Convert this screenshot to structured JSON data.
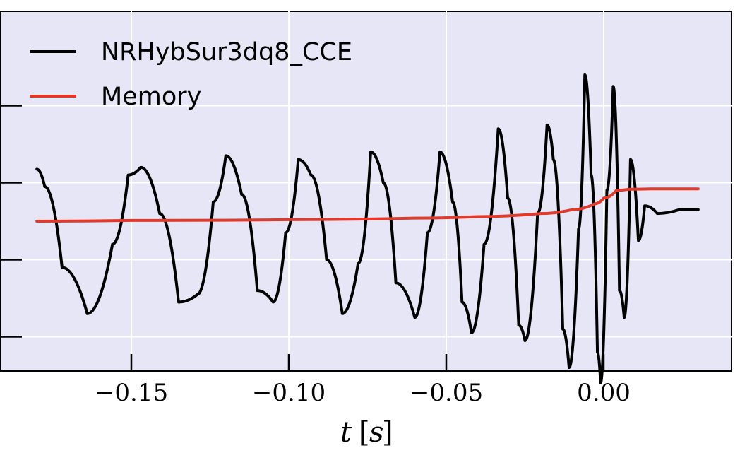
{
  "chart_data": {
    "type": "line",
    "xlabel": "t [s]",
    "ylabel": "",
    "xlim": [
      -0.185,
      0.04
    ],
    "ylim": [
      -0.6,
      0.6
    ],
    "grid": true,
    "legend": "top-left",
    "background_color": "#e6e6f6",
    "grid_color": "#ffffff",
    "x_ticks": [
      -0.15,
      -0.1,
      -0.05,
      0.0
    ],
    "x_tick_labels": [
      "−0.15",
      "−0.10",
      "−0.05",
      "0.00"
    ],
    "y_ticks": [
      -0.3,
      -0.1,
      0.1,
      0.3
    ],
    "series": [
      {
        "name": "NRHybSur3dq8_CCE",
        "color": "#000000",
        "description_points": [
          [
            -0.18,
            0.135
          ],
          [
            -0.1775,
            0.09
          ],
          [
            -0.172,
            -0.12
          ],
          [
            -0.164,
            -0.24
          ],
          [
            -0.156,
            -0.06
          ],
          [
            -0.151,
            0.12
          ],
          [
            -0.147,
            0.14
          ],
          [
            -0.141,
            0.02
          ],
          [
            -0.135,
            -0.21
          ],
          [
            -0.129,
            -0.19
          ],
          [
            -0.124,
            0.05
          ],
          [
            -0.12,
            0.17
          ],
          [
            -0.115,
            0.07
          ],
          [
            -0.11,
            -0.18
          ],
          [
            -0.105,
            -0.21
          ],
          [
            -0.101,
            -0.03
          ],
          [
            -0.097,
            0.16
          ],
          [
            -0.093,
            0.12
          ],
          [
            -0.088,
            -0.1
          ],
          [
            -0.083,
            -0.24
          ],
          [
            -0.078,
            -0.11
          ],
          [
            -0.074,
            0.18
          ],
          [
            -0.07,
            0.1
          ],
          [
            -0.066,
            -0.16
          ],
          [
            -0.06,
            -0.25
          ],
          [
            -0.056,
            -0.03
          ],
          [
            -0.052,
            0.18
          ],
          [
            -0.048,
            0.05
          ],
          [
            -0.045,
            -0.21
          ],
          [
            -0.042,
            -0.29
          ],
          [
            -0.038,
            -0.06
          ],
          [
            -0.0335,
            0.24
          ],
          [
            -0.0305,
            0.06
          ],
          [
            -0.027,
            -0.27
          ],
          [
            -0.025,
            -0.31
          ],
          [
            -0.021,
            0.02
          ],
          [
            -0.018,
            0.25
          ],
          [
            -0.016,
            0.16
          ],
          [
            -0.013,
            -0.28
          ],
          [
            -0.011,
            -0.38
          ],
          [
            -0.008,
            -0.02
          ],
          [
            -0.006,
            0.38
          ],
          [
            -0.004,
            0.12
          ],
          [
            -0.002,
            -0.34
          ],
          [
            -0.001,
            -0.42
          ],
          [
            0.001,
            0.08
          ],
          [
            0.003,
            0.35
          ],
          [
            0.005,
            -0.18
          ],
          [
            0.0065,
            -0.25
          ],
          [
            0.0085,
            0.16
          ],
          [
            0.011,
            -0.05
          ],
          [
            0.013,
            0.04
          ],
          [
            0.017,
            0.02
          ],
          [
            0.024,
            0.03
          ],
          [
            0.03,
            0.03
          ]
        ]
      },
      {
        "name": "Memory",
        "color": "#e23a2a",
        "description_points": [
          [
            -0.18,
            0.0
          ],
          [
            -0.15,
            0.002
          ],
          [
            -0.1,
            0.004
          ],
          [
            -0.06,
            0.008
          ],
          [
            -0.04,
            0.012
          ],
          [
            -0.02,
            0.02
          ],
          [
            -0.01,
            0.03
          ],
          [
            -0.003,
            0.045
          ],
          [
            0.0,
            0.06
          ],
          [
            0.004,
            0.08
          ],
          [
            0.008,
            0.083
          ],
          [
            0.015,
            0.084
          ],
          [
            0.03,
            0.084
          ]
        ]
      }
    ]
  },
  "legend": {
    "items": [
      {
        "label": "NRHybSur3dq8_CCE",
        "color": "#000000"
      },
      {
        "label": "Memory",
        "color": "#e23a2a"
      }
    ]
  },
  "x_axis": {
    "label_symbol": "t",
    "label_bracket_left": "[",
    "label_unit": "s",
    "label_bracket_right": "]"
  }
}
